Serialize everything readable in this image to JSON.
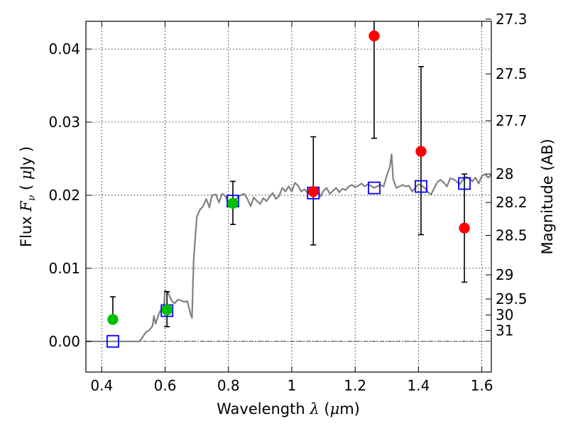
{
  "chart_data": {
    "type": "scatter",
    "title": "",
    "xlabel": "Wavelength",
    "xlabel_symbol": "λ",
    "xlabel_unit_open": " (",
    "xlabel_unit_mu": "μ",
    "xlabel_unit_rest": "m)",
    "ylabel": "Flux",
    "ylabel_symbol": "F",
    "ylabel_subscript": "ν",
    "ylabel_unit_open": " ( ",
    "ylabel_unit_mu": "μ",
    "ylabel_unit_rest": "Jy )",
    "y2label": "Magnitude (AB)",
    "xlim": [
      0.35,
      1.63
    ],
    "ylim": [
      -0.0042,
      0.0438
    ],
    "grid": true,
    "x_ticks": [
      0.4,
      0.6,
      0.8,
      1.0,
      1.2,
      1.4,
      1.6
    ],
    "x_tick_labels": [
      "0.4",
      "0.6",
      "0.8",
      "1",
      "1.2",
      "1.4",
      "1.6"
    ],
    "y_ticks": [
      0.0,
      0.01,
      0.02,
      0.03,
      0.04
    ],
    "y_tick_labels": [
      "0.00",
      "0.01",
      "0.02",
      "0.03",
      "0.04"
    ],
    "right_ticks": [
      {
        "flux": 0.0441,
        "label": "27.3"
      },
      {
        "flux": 0.0366,
        "label": "27.5"
      },
      {
        "flux": 0.0302,
        "label": "27.7"
      },
      {
        "flux": 0.0229,
        "label": "28"
      },
      {
        "flux": 0.019,
        "label": "28.2"
      },
      {
        "flux": 0.0145,
        "label": "28.5"
      },
      {
        "flux": 0.0091,
        "label": "29"
      },
      {
        "flux": 0.0058,
        "label": "29.5"
      },
      {
        "flux": 0.0036,
        "label": "30"
      },
      {
        "flux": 0.0015,
        "label": "31"
      }
    ],
    "zero_line": 0.0,
    "model_sed": {
      "color": "#808080",
      "points": [
        [
          0.35,
          0.0
        ],
        [
          0.52,
          0.0
        ],
        [
          0.54,
          0.0013
        ],
        [
          0.55,
          0.0015
        ],
        [
          0.56,
          0.0021
        ],
        [
          0.565,
          0.0035
        ],
        [
          0.57,
          0.0024
        ],
        [
          0.58,
          0.0037
        ],
        [
          0.59,
          0.0047
        ],
        [
          0.595,
          0.004
        ],
        [
          0.6,
          0.007
        ],
        [
          0.61,
          0.0066
        ],
        [
          0.62,
          0.0056
        ],
        [
          0.63,
          0.0052
        ],
        [
          0.64,
          0.0057
        ],
        [
          0.65,
          0.0056
        ],
        [
          0.66,
          0.0054
        ],
        [
          0.67,
          0.0055
        ],
        [
          0.68,
          0.0038
        ],
        [
          0.685,
          0.0032
        ],
        [
          0.69,
          0.011
        ],
        [
          0.7,
          0.017
        ],
        [
          0.71,
          0.018
        ],
        [
          0.72,
          0.0185
        ],
        [
          0.73,
          0.0195
        ],
        [
          0.74,
          0.0183
        ],
        [
          0.745,
          0.0195
        ],
        [
          0.75,
          0.02
        ],
        [
          0.76,
          0.0201
        ],
        [
          0.77,
          0.019
        ],
        [
          0.78,
          0.0202
        ],
        [
          0.79,
          0.0199
        ],
        [
          0.8,
          0.0191
        ],
        [
          0.81,
          0.0186
        ],
        [
          0.82,
          0.019
        ],
        [
          0.83,
          0.0198
        ],
        [
          0.84,
          0.02
        ],
        [
          0.85,
          0.0202
        ],
        [
          0.86,
          0.0195
        ],
        [
          0.87,
          0.0185
        ],
        [
          0.88,
          0.0197
        ],
        [
          0.89,
          0.0192
        ],
        [
          0.9,
          0.0188
        ],
        [
          0.91,
          0.0196
        ],
        [
          0.92,
          0.0192
        ],
        [
          0.93,
          0.0198
        ],
        [
          0.94,
          0.0203
        ],
        [
          0.95,
          0.0195
        ],
        [
          0.96,
          0.0199
        ],
        [
          0.97,
          0.021
        ],
        [
          0.98,
          0.0205
        ],
        [
          0.99,
          0.0212
        ],
        [
          1.0,
          0.0205
        ],
        [
          1.01,
          0.0217
        ],
        [
          1.02,
          0.0213
        ],
        [
          1.03,
          0.0205
        ],
        [
          1.04,
          0.0208
        ],
        [
          1.05,
          0.0203
        ],
        [
          1.06,
          0.021
        ],
        [
          1.07,
          0.0207
        ],
        [
          1.08,
          0.0211
        ],
        [
          1.09,
          0.0198
        ],
        [
          1.1,
          0.0206
        ],
        [
          1.11,
          0.021
        ],
        [
          1.12,
          0.0202
        ],
        [
          1.13,
          0.0206
        ],
        [
          1.14,
          0.021
        ],
        [
          1.15,
          0.0204
        ],
        [
          1.16,
          0.0209
        ],
        [
          1.17,
          0.0207
        ],
        [
          1.18,
          0.0212
        ],
        [
          1.19,
          0.0214
        ],
        [
          1.2,
          0.0211
        ],
        [
          1.21,
          0.0213
        ],
        [
          1.22,
          0.0216
        ],
        [
          1.23,
          0.0212
        ],
        [
          1.24,
          0.0215
        ],
        [
          1.25,
          0.0213
        ],
        [
          1.26,
          0.021
        ],
        [
          1.27,
          0.0212
        ],
        [
          1.28,
          0.0214
        ],
        [
          1.29,
          0.0212
        ],
        [
          1.3,
          0.0227
        ],
        [
          1.31,
          0.024
        ],
        [
          1.315,
          0.0256
        ],
        [
          1.32,
          0.0222
        ],
        [
          1.33,
          0.021
        ],
        [
          1.34,
          0.0212
        ],
        [
          1.35,
          0.0214
        ],
        [
          1.36,
          0.0212
        ],
        [
          1.37,
          0.0213
        ],
        [
          1.38,
          0.0205
        ],
        [
          1.39,
          0.021
        ],
        [
          1.4,
          0.0215
        ],
        [
          1.41,
          0.0213
        ],
        [
          1.42,
          0.021
        ],
        [
          1.43,
          0.0204
        ],
        [
          1.44,
          0.0201
        ],
        [
          1.45,
          0.021
        ],
        [
          1.46,
          0.0218
        ],
        [
          1.47,
          0.0221
        ],
        [
          1.48,
          0.0217
        ],
        [
          1.49,
          0.0212
        ],
        [
          1.5,
          0.0223
        ],
        [
          1.51,
          0.0222
        ],
        [
          1.52,
          0.0219
        ],
        [
          1.53,
          0.0215
        ],
        [
          1.54,
          0.0221
        ],
        [
          1.55,
          0.0225
        ],
        [
          1.56,
          0.0223
        ],
        [
          1.57,
          0.0219
        ],
        [
          1.58,
          0.0224
        ],
        [
          1.59,
          0.0216
        ],
        [
          1.6,
          0.0226
        ],
        [
          1.61,
          0.0229
        ],
        [
          1.62,
          0.0224
        ],
        [
          1.63,
          0.0228
        ]
      ]
    },
    "series": [
      {
        "marker": "circle",
        "color": "#00c000",
        "points": [
          {
            "x": 0.435,
            "y": 0.003,
            "err_low": 0.003,
            "err_high": 0.0061
          },
          {
            "x": 0.606,
            "y": 0.0043,
            "err_low": 0.002,
            "err_high": 0.0068
          },
          {
            "x": 0.814,
            "y": 0.0189,
            "err_low": 0.016,
            "err_high": 0.0219
          }
        ]
      },
      {
        "marker": "circle",
        "color": "#ff0000",
        "points": [
          {
            "x": 1.068,
            "y": 0.0205,
            "err_low": 0.0132,
            "err_high": 0.028
          },
          {
            "x": 1.26,
            "y": 0.0418,
            "err_low": 0.0278,
            "err_high": 0.0445
          },
          {
            "x": 1.408,
            "y": 0.026,
            "err_low": 0.0146,
            "err_high": 0.0376
          },
          {
            "x": 1.545,
            "y": 0.0155,
            "err_low": 0.0081,
            "err_high": 0.0229
          }
        ]
      },
      {
        "marker": "open-square",
        "color": "#0000ff",
        "points": [
          {
            "x": 0.435,
            "y": 0.0
          },
          {
            "x": 0.606,
            "y": 0.0042
          },
          {
            "x": 0.814,
            "y": 0.0192
          },
          {
            "x": 1.068,
            "y": 0.0203
          },
          {
            "x": 1.26,
            "y": 0.021
          },
          {
            "x": 1.408,
            "y": 0.0212
          },
          {
            "x": 1.545,
            "y": 0.0216
          }
        ]
      }
    ]
  }
}
